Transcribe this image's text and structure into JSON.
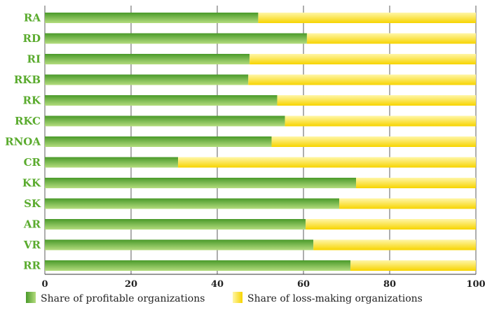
{
  "chart_data": {
    "type": "bar",
    "orientation": "horizontal",
    "stacked": true,
    "categories": [
      "RA",
      "RD",
      "RI",
      "RKB",
      "RK",
      "RKC",
      "RNOA",
      "CR",
      "KK",
      "SK",
      "AR",
      "VR",
      "RR"
    ],
    "series": [
      {
        "name": "Share of profitable organizations",
        "values": [
          49.5,
          60.8,
          47.5,
          47.2,
          53.9,
          55.7,
          52.6,
          30.9,
          72.2,
          68.3,
          60.5,
          62.3,
          70.9
        ],
        "color_start": "#4a9a2a",
        "color_end": "#b4dc7e"
      },
      {
        "name": "Share of loss-making organizations",
        "values": [
          50.5,
          39.2,
          52.5,
          52.8,
          46.1,
          44.3,
          47.4,
          69.1,
          27.8,
          31.7,
          39.5,
          37.7,
          29.1
        ],
        "color_start": "#fff6a8",
        "color_end": "#f7d400"
      }
    ],
    "xlim": [
      0,
      100
    ],
    "xticks": [
      "0",
      "20",
      "40",
      "60",
      "80",
      "100"
    ],
    "xlabel": "",
    "ylabel": "",
    "title": "",
    "grid": "vertical",
    "legend_position": "bottom"
  }
}
